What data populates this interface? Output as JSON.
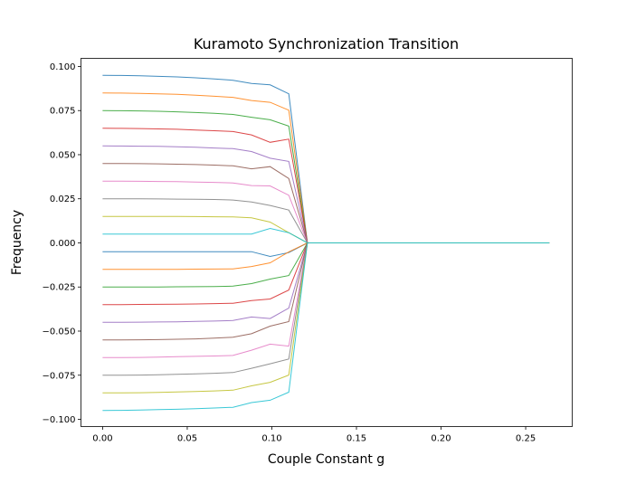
{
  "chart_data": {
    "type": "line",
    "title": "Kuramoto Synchronization Transition",
    "xlabel": "Couple Constant g",
    "ylabel": "Frequency",
    "xlim": [
      -0.0128,
      0.2775
    ],
    "ylim": [
      -0.1041,
      0.1046
    ],
    "xticks": [
      0.0,
      0.05,
      0.1,
      0.15,
      0.2,
      0.25
    ],
    "xtick_labels": [
      "0.00",
      "0.05",
      "0.10",
      "0.15",
      "0.20",
      "0.25"
    ],
    "yticks": [
      -0.1,
      -0.075,
      -0.05,
      -0.025,
      0.0,
      0.025,
      0.05,
      0.075,
      0.1
    ],
    "ytick_labels": [
      "−0.100",
      "−0.075",
      "−0.050",
      "−0.025",
      "0.000",
      "0.025",
      "0.050",
      "0.075",
      "0.100"
    ],
    "grid": false,
    "legend": "none",
    "x": [
      0,
      0.011,
      0.022,
      0.033,
      0.044,
      0.055,
      0.066,
      0.077,
      0.088,
      0.099,
      0.11,
      0.121,
      0.132,
      0.143,
      0.154,
      0.165,
      0.176,
      0.187,
      0.198,
      0.209,
      0.22,
      0.231,
      0.242,
      0.253,
      0.264
    ],
    "series": [
      {
        "color": "#1f77b4",
        "values": [
          0.095,
          0.0949,
          0.0947,
          0.0944,
          0.0941,
          0.0936,
          0.0929,
          0.0922,
          0.0904,
          0.0896,
          0.0845,
          0,
          0,
          0,
          0,
          0,
          0,
          0,
          0,
          0,
          0,
          0,
          0,
          0,
          0
        ]
      },
      {
        "color": "#ff7f0e",
        "values": [
          0.085,
          0.0849,
          0.0847,
          0.0845,
          0.0842,
          0.0837,
          0.0831,
          0.0825,
          0.0807,
          0.0797,
          0.0752,
          0,
          0,
          0,
          0,
          0,
          0,
          0,
          0,
          0,
          0,
          0,
          0,
          0,
          0
        ]
      },
      {
        "color": "#2ca02c",
        "values": [
          0.075,
          0.0749,
          0.0748,
          0.0746,
          0.0743,
          0.0739,
          0.0734,
          0.0728,
          0.0712,
          0.0698,
          0.0662,
          0,
          0,
          0,
          0,
          0,
          0,
          0,
          0,
          0,
          0,
          0,
          0,
          0,
          0
        ]
      },
      {
        "color": "#d62728",
        "values": [
          0.065,
          0.0649,
          0.0648,
          0.0646,
          0.0644,
          0.064,
          0.0636,
          0.0631,
          0.0612,
          0.057,
          0.0588,
          0,
          0,
          0,
          0,
          0,
          0,
          0,
          0,
          0,
          0,
          0,
          0,
          0,
          0
        ]
      },
      {
        "color": "#9467bd",
        "values": [
          0.055,
          0.0549,
          0.0548,
          0.0547,
          0.0545,
          0.0542,
          0.0538,
          0.0534,
          0.0518,
          0.048,
          0.0462,
          0,
          0,
          0,
          0,
          0,
          0,
          0,
          0,
          0,
          0,
          0,
          0,
          0,
          0
        ]
      },
      {
        "color": "#8c564b",
        "values": [
          0.045,
          0.045,
          0.0449,
          0.0448,
          0.0446,
          0.0444,
          0.0441,
          0.0437,
          0.042,
          0.0432,
          0.0365,
          0,
          0,
          0,
          0,
          0,
          0,
          0,
          0,
          0,
          0,
          0,
          0,
          0,
          0
        ]
      },
      {
        "color": "#e377c2",
        "values": [
          0.035,
          0.035,
          0.0349,
          0.0348,
          0.0347,
          0.0345,
          0.0343,
          0.034,
          0.0325,
          0.0323,
          0.027,
          0,
          0,
          0,
          0,
          0,
          0,
          0,
          0,
          0,
          0,
          0,
          0,
          0,
          0
        ]
      },
      {
        "color": "#7f7f7f",
        "values": [
          0.025,
          0.025,
          0.025,
          0.0249,
          0.0248,
          0.0247,
          0.0246,
          0.0243,
          0.0232,
          0.0212,
          0.0186,
          0,
          0,
          0,
          0,
          0,
          0,
          0,
          0,
          0,
          0,
          0,
          0,
          0,
          0
        ]
      },
      {
        "color": "#bcbd22",
        "values": [
          0.015,
          0.015,
          0.015,
          0.015,
          0.015,
          0.0149,
          0.0148,
          0.0147,
          0.0142,
          0.0118,
          0.0058,
          0,
          0,
          0,
          0,
          0,
          0,
          0,
          0,
          0,
          0,
          0,
          0,
          0,
          0
        ]
      },
      {
        "color": "#17becf",
        "values": [
          0.005,
          0.005,
          0.005,
          0.005,
          0.005,
          0.005,
          0.005,
          0.005,
          0.005,
          0.0082,
          0.0058,
          0,
          0,
          0,
          0,
          0,
          0,
          0,
          0,
          0,
          0,
          0,
          0,
          0,
          0
        ]
      },
      {
        "color": "#1f77b4",
        "values": [
          -0.005,
          -0.005,
          -0.005,
          -0.005,
          -0.005,
          -0.005,
          -0.005,
          -0.005,
          -0.005,
          -0.0077,
          -0.0055,
          0,
          0,
          0,
          0,
          0,
          0,
          0,
          0,
          0,
          0,
          0,
          0,
          0,
          0
        ]
      },
      {
        "color": "#ff7f0e",
        "values": [
          -0.015,
          -0.015,
          -0.015,
          -0.015,
          -0.015,
          -0.0149,
          -0.0148,
          -0.0147,
          -0.0134,
          -0.0113,
          -0.0051,
          0,
          0,
          0,
          0,
          0,
          0,
          0,
          0,
          0,
          0,
          0,
          0,
          0,
          0
        ]
      },
      {
        "color": "#2ca02c",
        "values": [
          -0.025,
          -0.025,
          -0.025,
          -0.025,
          -0.0249,
          -0.0248,
          -0.0247,
          -0.0245,
          -0.0231,
          -0.0205,
          -0.0185,
          0,
          0,
          0,
          0,
          0,
          0,
          0,
          0,
          0,
          0,
          0,
          0,
          0,
          0
        ]
      },
      {
        "color": "#d62728",
        "values": [
          -0.035,
          -0.035,
          -0.0349,
          -0.0348,
          -0.0347,
          -0.0346,
          -0.0344,
          -0.0342,
          -0.0327,
          -0.0318,
          -0.0267,
          0,
          0,
          0,
          0,
          0,
          0,
          0,
          0,
          0,
          0,
          0,
          0,
          0,
          0
        ]
      },
      {
        "color": "#9467bd",
        "values": [
          -0.045,
          -0.045,
          -0.0449,
          -0.0448,
          -0.0447,
          -0.0445,
          -0.0443,
          -0.044,
          -0.042,
          -0.0429,
          -0.037,
          0,
          0,
          0,
          0,
          0,
          0,
          0,
          0,
          0,
          0,
          0,
          0,
          0,
          0
        ]
      },
      {
        "color": "#8c564b",
        "values": [
          -0.055,
          -0.055,
          -0.0549,
          -0.0548,
          -0.0546,
          -0.0544,
          -0.054,
          -0.0535,
          -0.0515,
          -0.0472,
          -0.0446,
          0,
          0,
          0,
          0,
          0,
          0,
          0,
          0,
          0,
          0,
          0,
          0,
          0,
          0
        ]
      },
      {
        "color": "#e377c2",
        "values": [
          -0.065,
          -0.065,
          -0.0649,
          -0.0647,
          -0.0645,
          -0.0643,
          -0.0641,
          -0.0638,
          -0.0608,
          -0.0574,
          -0.0585,
          0,
          0,
          0,
          0,
          0,
          0,
          0,
          0,
          0,
          0,
          0,
          0,
          0,
          0
        ]
      },
      {
        "color": "#7f7f7f",
        "values": [
          -0.075,
          -0.075,
          -0.0749,
          -0.0747,
          -0.0745,
          -0.0742,
          -0.0739,
          -0.0735,
          -0.0711,
          -0.0685,
          -0.0658,
          0,
          0,
          0,
          0,
          0,
          0,
          0,
          0,
          0,
          0,
          0,
          0,
          0,
          0
        ]
      },
      {
        "color": "#bcbd22",
        "values": [
          -0.085,
          -0.085,
          -0.0849,
          -0.0847,
          -0.0845,
          -0.0842,
          -0.0839,
          -0.0835,
          -0.081,
          -0.079,
          -0.0749,
          0,
          0,
          0,
          0,
          0,
          0,
          0,
          0,
          0,
          0,
          0,
          0,
          0,
          0
        ]
      },
      {
        "color": "#17becf",
        "values": [
          -0.095,
          -0.0949,
          -0.0947,
          -0.0945,
          -0.0943,
          -0.094,
          -0.0936,
          -0.0932,
          -0.0905,
          -0.0892,
          -0.0846,
          0,
          0,
          0,
          0,
          0,
          0,
          0,
          0,
          0,
          0,
          0,
          0,
          0,
          0
        ]
      }
    ]
  }
}
